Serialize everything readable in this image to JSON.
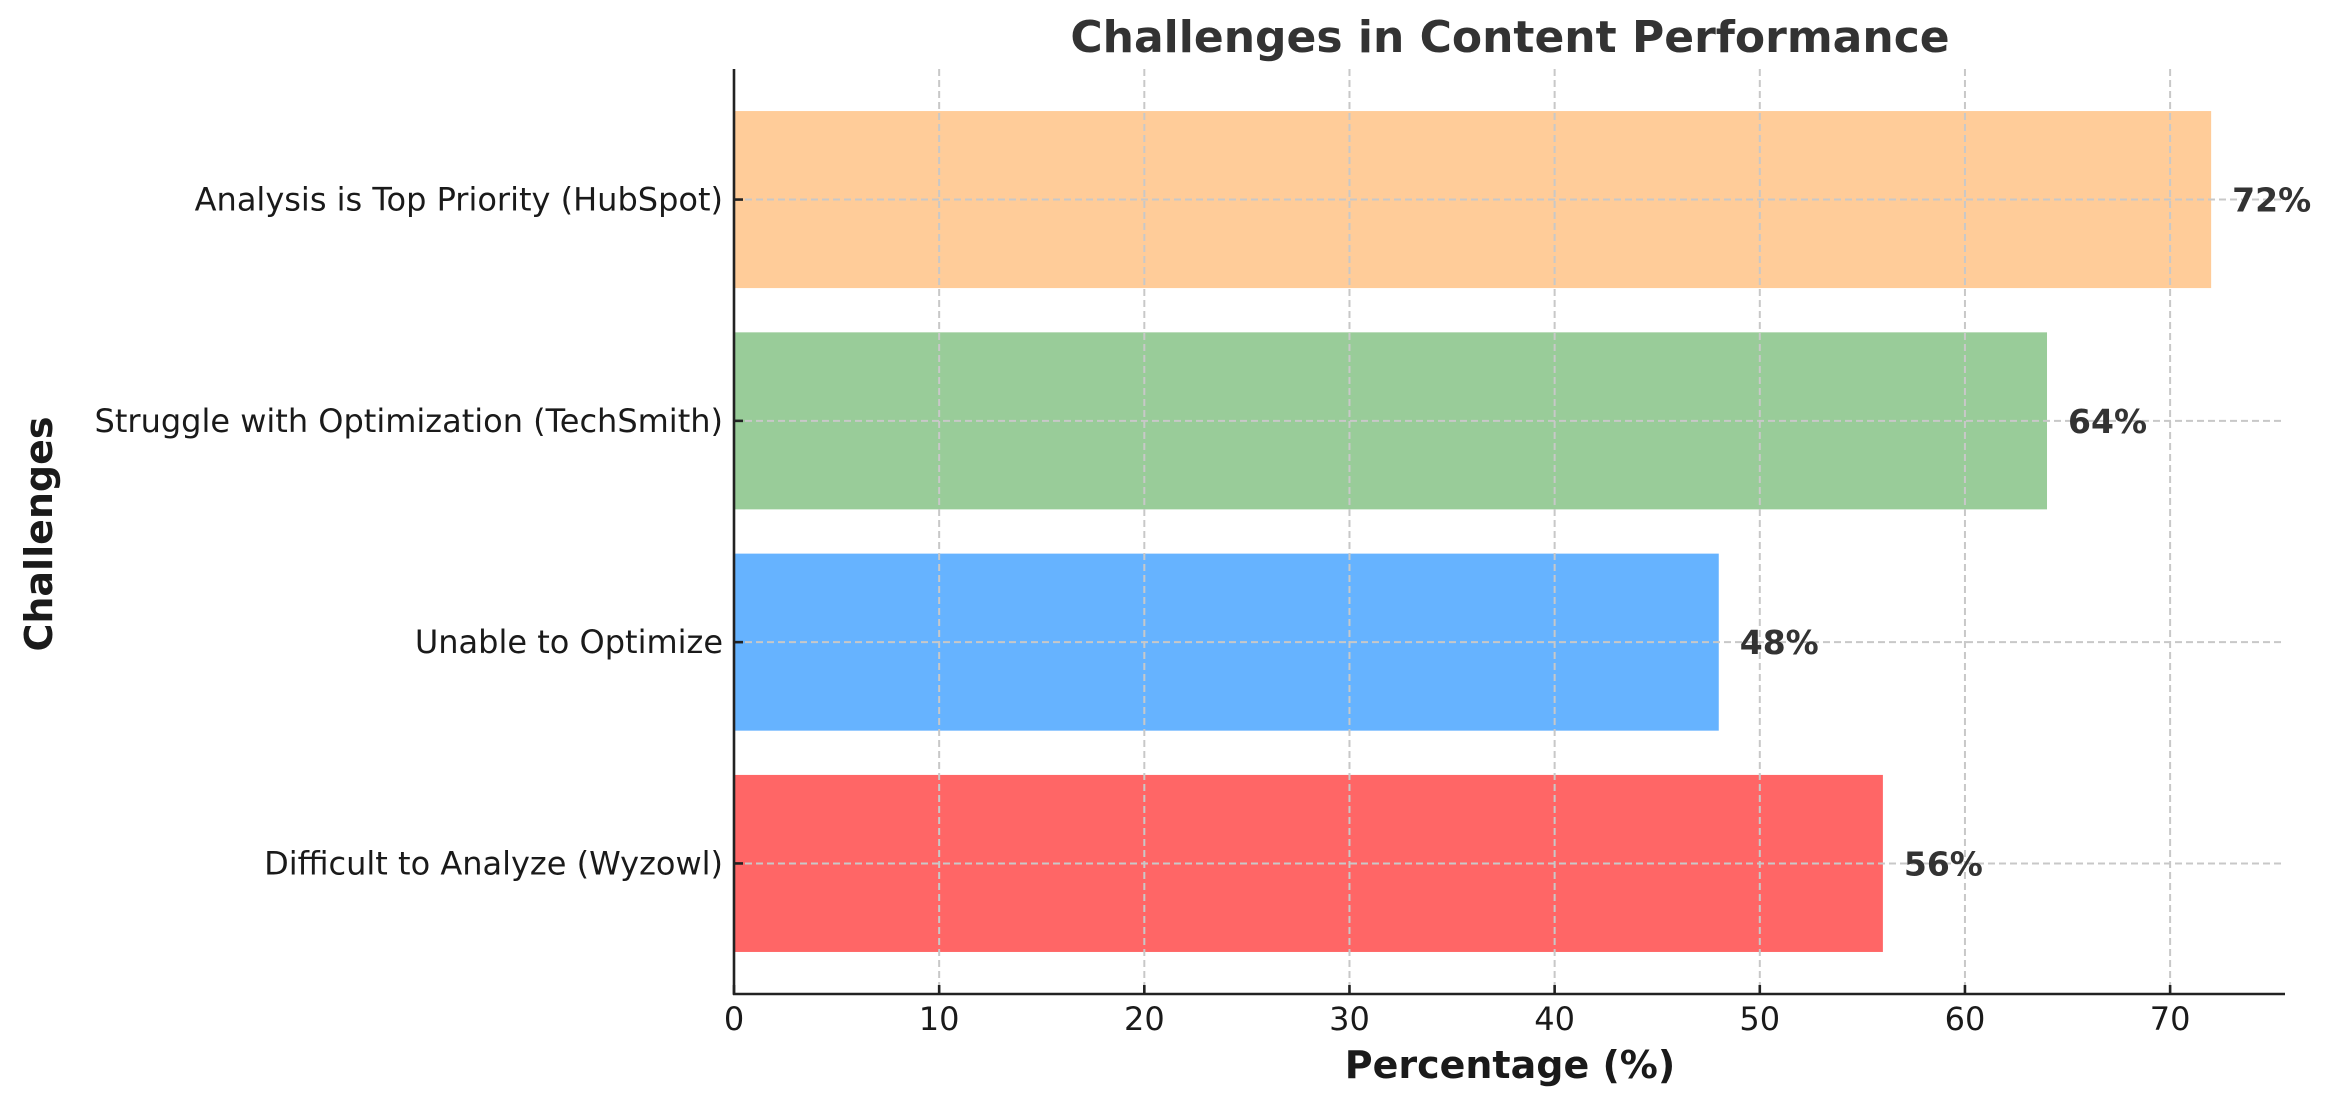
{
  "chart_data": {
    "type": "bar",
    "orientation": "horizontal",
    "title": "Challenges in Content Performance",
    "xlabel": "Percentage (%)",
    "ylabel": "Challenges",
    "categories": [
      "Difficult to Analyze (Wyzowl)",
      "Unable to Optimize",
      "Struggle with Optimization (TechSmith)",
      "Analysis is Top Priority (HubSpot)"
    ],
    "values": [
      56,
      48,
      64,
      72
    ],
    "value_labels": [
      "56%",
      "48%",
      "64%",
      "72%"
    ],
    "colors": [
      "#ff6666",
      "#66b3ff",
      "#99cc99",
      "#ffcc99"
    ],
    "xlim": [
      0,
      75.6
    ],
    "xticks": [
      0,
      10,
      20,
      30,
      40,
      50,
      60,
      70
    ],
    "grid": true,
    "grid_style": "dashed",
    "legend": null
  }
}
